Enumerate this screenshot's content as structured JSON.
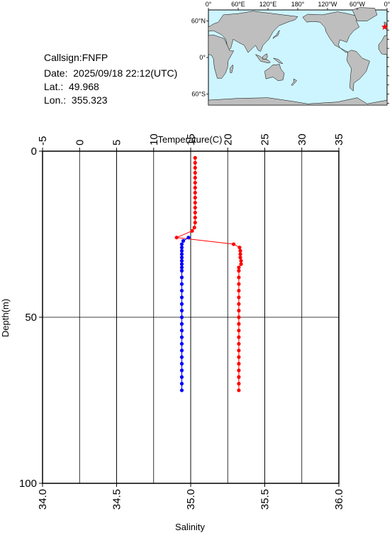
{
  "station": {
    "callsign": "Callsign:FNFP",
    "date": "Date:  2025/09/18 22:12(UTC)",
    "lat": "Lat.:  49.968",
    "lon": "Lon.:  355.323"
  },
  "map": {
    "lon_labels": [
      "0°",
      "60°E",
      "120°E",
      "180°",
      "120°W",
      "60°W",
      "0°"
    ],
    "lat_labels": [
      "60°N",
      "0°",
      "60°S"
    ],
    "ocean_color": "#cdf5ff",
    "land_color": "#bebebe",
    "marker_color": "#ff0000",
    "marker": {
      "lon": 355.323,
      "lat": 49.968
    }
  },
  "chart_data": {
    "type": "scatter",
    "xlabel_top": "Temperature(C)",
    "xlabel_bottom": "Salinity",
    "ylabel": "Depth(m)",
    "temperature_range": [
      -5,
      35
    ],
    "temperature_ticks": [
      "-5",
      "0",
      "5",
      "10",
      "15",
      "20",
      "25",
      "30",
      "35"
    ],
    "salinity_range": [
      34.0,
      36.0
    ],
    "salinity_ticks": [
      "34.0",
      "34.5",
      "35.0",
      "35.5",
      "36.0"
    ],
    "depth_range": [
      0,
      100
    ],
    "depth_ticks": [
      "0",
      "50",
      "100"
    ],
    "grid": true,
    "series": [
      {
        "name": "Temperature",
        "color": "#ff0000",
        "points": [
          [
            15.6,
            2
          ],
          [
            15.6,
            3.5
          ],
          [
            15.6,
            5
          ],
          [
            15.6,
            6.5
          ],
          [
            15.6,
            8
          ],
          [
            15.6,
            9.5
          ],
          [
            15.6,
            11
          ],
          [
            15.6,
            12.5
          ],
          [
            15.6,
            14
          ],
          [
            15.6,
            15.5
          ],
          [
            15.6,
            17
          ],
          [
            15.6,
            18.5
          ],
          [
            15.6,
            20
          ],
          [
            15.6,
            21.5
          ],
          [
            15.5,
            23
          ],
          [
            15.2,
            24
          ],
          [
            13.1,
            26
          ],
          [
            20.8,
            28
          ],
          [
            21.6,
            29
          ],
          [
            21.7,
            30
          ],
          [
            21.7,
            31
          ],
          [
            21.7,
            32
          ],
          [
            21.8,
            33
          ],
          [
            21.8,
            34
          ],
          [
            21.5,
            35
          ],
          [
            21.5,
            36
          ],
          [
            21.5,
            38
          ],
          [
            21.5,
            40
          ],
          [
            21.5,
            42
          ],
          [
            21.5,
            44
          ],
          [
            21.5,
            46
          ],
          [
            21.5,
            48
          ],
          [
            21.5,
            50
          ],
          [
            21.5,
            52
          ],
          [
            21.5,
            54
          ],
          [
            21.5,
            56
          ],
          [
            21.5,
            58
          ],
          [
            21.5,
            60
          ],
          [
            21.5,
            62
          ],
          [
            21.5,
            64
          ],
          [
            21.5,
            66
          ],
          [
            21.5,
            68
          ],
          [
            21.5,
            70
          ],
          [
            21.5,
            72
          ]
        ]
      },
      {
        "name": "Salinity",
        "color": "#0000ff",
        "points": [
          [
            34.985,
            26
          ],
          [
            34.95,
            27
          ],
          [
            34.94,
            28
          ],
          [
            34.94,
            29
          ],
          [
            34.94,
            30
          ],
          [
            34.94,
            31
          ],
          [
            34.94,
            32
          ],
          [
            34.94,
            33
          ],
          [
            34.94,
            34
          ],
          [
            34.94,
            35
          ],
          [
            34.94,
            36
          ],
          [
            34.94,
            38
          ],
          [
            34.94,
            40
          ],
          [
            34.94,
            42
          ],
          [
            34.94,
            44
          ],
          [
            34.94,
            46
          ],
          [
            34.94,
            48
          ],
          [
            34.94,
            50
          ],
          [
            34.94,
            52
          ],
          [
            34.94,
            54
          ],
          [
            34.94,
            56
          ],
          [
            34.94,
            58
          ],
          [
            34.94,
            60
          ],
          [
            34.94,
            62
          ],
          [
            34.94,
            64
          ],
          [
            34.94,
            66
          ],
          [
            34.94,
            68
          ],
          [
            34.94,
            70
          ],
          [
            34.94,
            72
          ]
        ]
      }
    ]
  }
}
